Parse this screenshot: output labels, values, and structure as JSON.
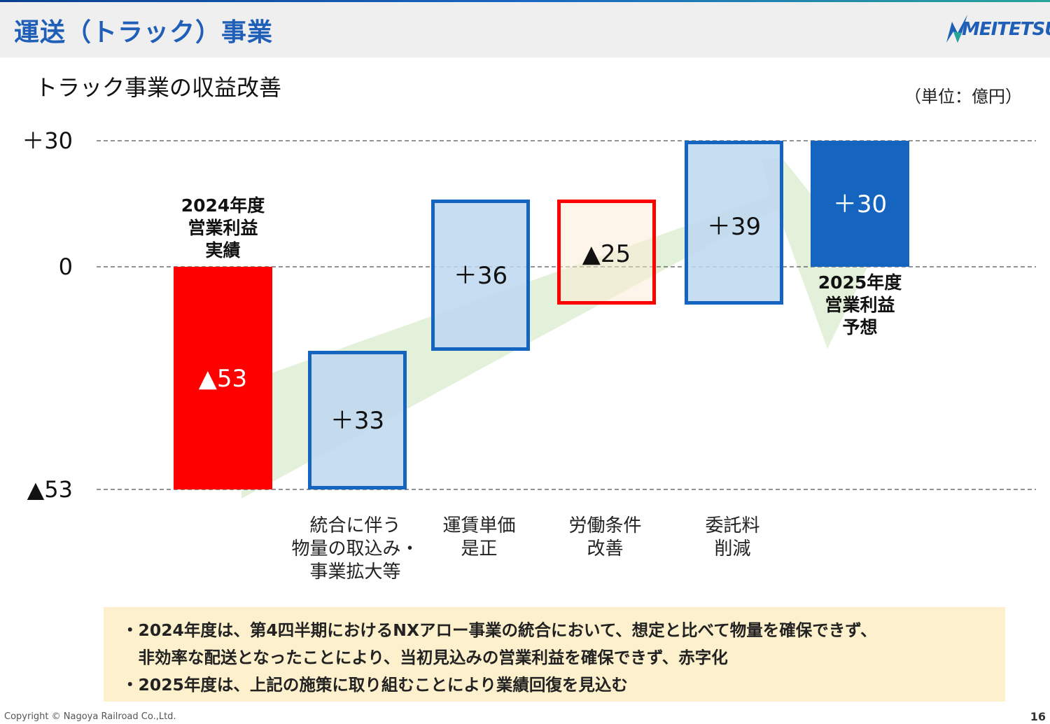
{
  "page_title": "運送（トラック）事業",
  "logo_text": "MEITETSU",
  "subtitle": "トラック事業の収益改善",
  "unit_label": "（単位：億円）",
  "colors": {
    "title": "#1f5fb8",
    "negative": "#ff0000",
    "positive_fill": "#bdd7ee",
    "positive_border": "#1565c0",
    "result_fill": "#1565c0",
    "arrow": "#dfeed3",
    "note_bg": "#fdf0cc"
  },
  "chart_data": {
    "type": "bar",
    "subtype": "waterfall",
    "y_ticks": [
      {
        "value": 30,
        "label": "＋30"
      },
      {
        "value": 0,
        "label": "0"
      },
      {
        "value": -53,
        "label": "▲53"
      }
    ],
    "ylim": [
      -53,
      30
    ],
    "grid": "dashed at tick values",
    "steps": [
      {
        "kind": "start",
        "start": 0,
        "end": -53,
        "value_label": "▲53",
        "top_label": [
          "2024年度",
          "営業利益",
          "実績"
        ],
        "bottom_label": []
      },
      {
        "kind": "increase",
        "start": -53,
        "end": -20,
        "value_label": "＋33",
        "bottom_label": [
          "統合に伴う",
          "物量の取込み・",
          "事業拡大等"
        ]
      },
      {
        "kind": "increase",
        "start": -20,
        "end": 16,
        "value_label": "＋36",
        "bottom_label": [
          "運賃単価",
          "是正"
        ]
      },
      {
        "kind": "decrease",
        "start": 16,
        "end": -9,
        "value_label": "▲25",
        "bottom_label": [
          "労働条件",
          "改善"
        ]
      },
      {
        "kind": "increase",
        "start": -9,
        "end": 30,
        "value_label": "＋39",
        "bottom_label": [
          "委託料",
          "削減"
        ]
      },
      {
        "kind": "total",
        "start": 0,
        "end": 30,
        "value_label": "＋30",
        "below_label": [
          "2025年度",
          "営業利益",
          "予想"
        ]
      }
    ]
  },
  "notes": [
    "・2024年度は、第4四半期におけるNXアロー事業の統合において、想定と比べて物量を確保できず、",
    "　非効率な配送となったことにより、当初見込みの営業利益を確保できず、赤字化",
    "・2025年度は、上記の施策に取り組むことにより業績回復を見込む"
  ],
  "copyright": "Copyright © Nagoya Railroad Co.,Ltd.",
  "page_number": "16"
}
